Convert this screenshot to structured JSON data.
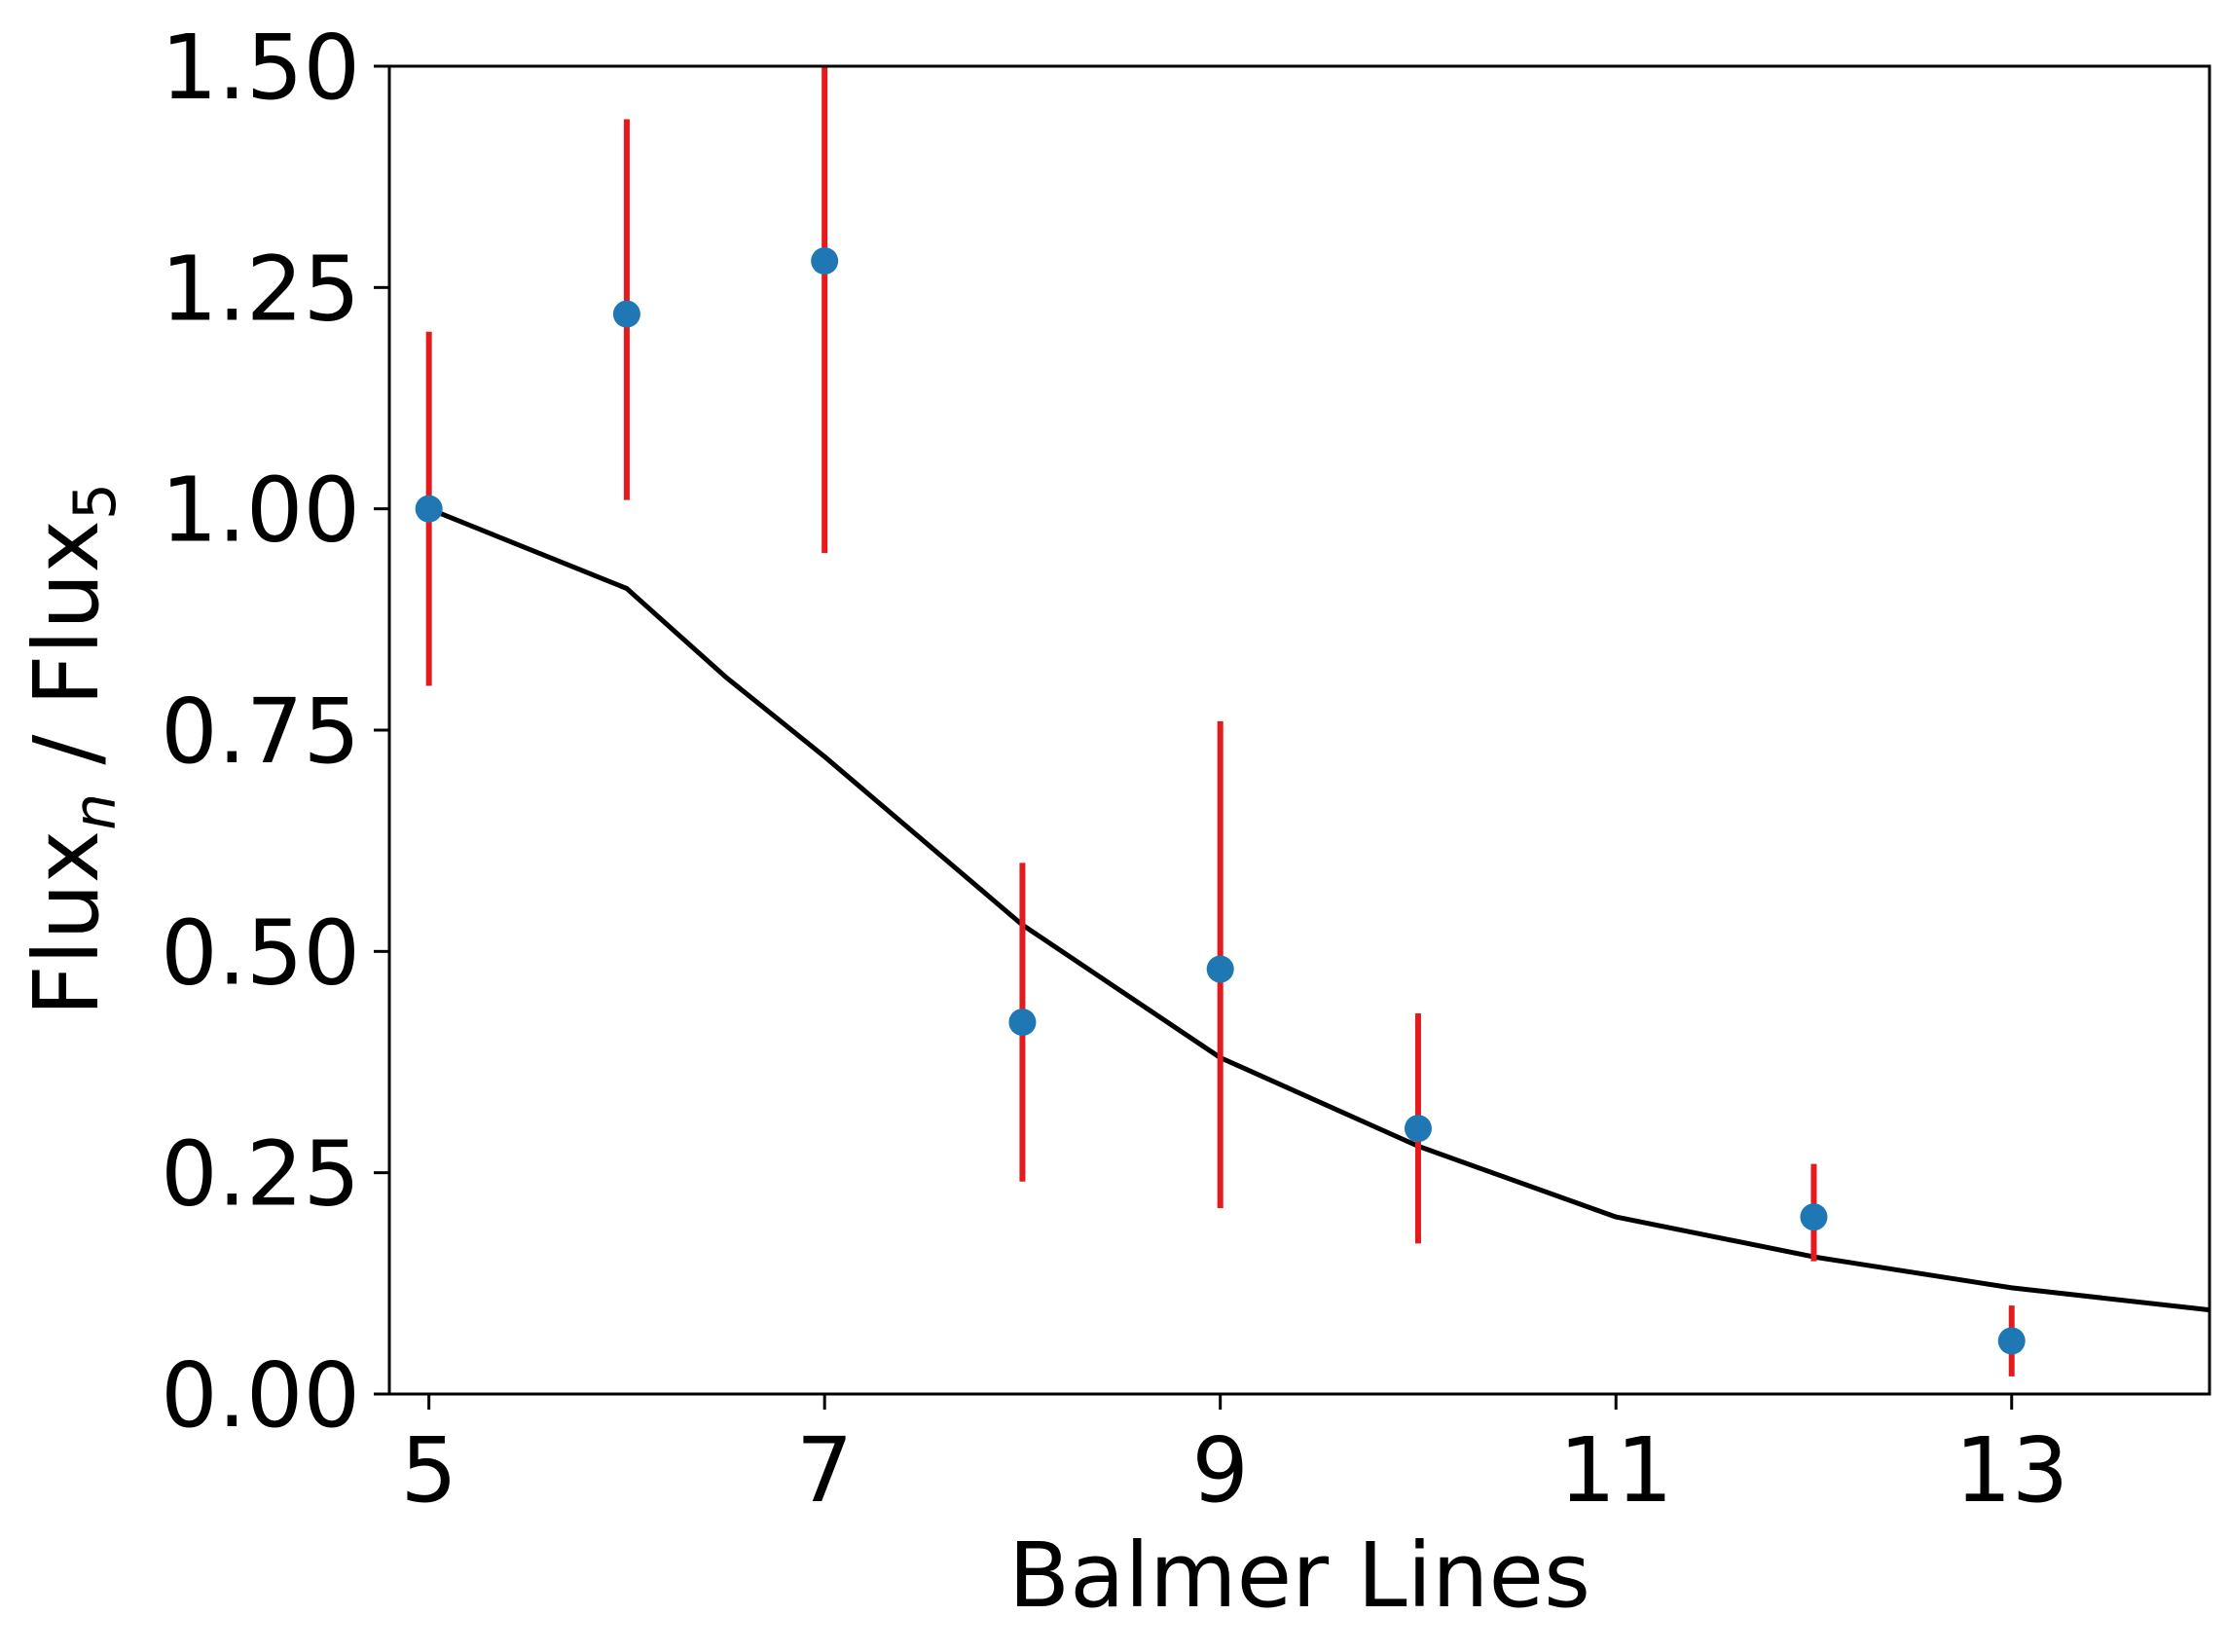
{
  "chart_data": {
    "type": "scatter",
    "xlabel": "Balmer Lines",
    "ylabel": {
      "base": "Flux",
      "sub_n": "n",
      "sep": " / ",
      "base2": "Flux",
      "sub_5": "5"
    },
    "xlim": [
      4.8,
      14
    ],
    "ylim": [
      0,
      1.5
    ],
    "xticks": [
      5,
      7,
      9,
      11,
      13
    ],
    "yticks": [
      0.0,
      0.25,
      0.5,
      0.75,
      1.0,
      1.25,
      1.5
    ],
    "ytick_labels": [
      "0.00",
      "0.25",
      "0.50",
      "0.75",
      "1.00",
      "1.25",
      "1.50"
    ],
    "grid": false,
    "series": [
      {
        "kind": "errorbar",
        "marker_color": "#1f77b4",
        "error_color": "#e41a1c",
        "points": [
          {
            "x": 5,
            "y": 1.0,
            "lo": 0.8,
            "hi": 1.2
          },
          {
            "x": 6,
            "y": 1.22,
            "lo": 1.01,
            "hi": 1.44
          },
          {
            "x": 7,
            "y": 1.28,
            "lo": 0.95,
            "hi": 1.5
          },
          {
            "x": 8,
            "y": 0.42,
            "lo": 0.24,
            "hi": 0.6
          },
          {
            "x": 9,
            "y": 0.48,
            "lo": 0.21,
            "hi": 0.76
          },
          {
            "x": 10,
            "y": 0.3,
            "lo": 0.17,
            "hi": 0.43
          },
          {
            "x": 12,
            "y": 0.2,
            "lo": 0.15,
            "hi": 0.26
          },
          {
            "x": 13,
            "y": 0.06,
            "lo": 0.02,
            "hi": 0.1
          }
        ]
      },
      {
        "kind": "line",
        "color": "#000000",
        "x": [
          5,
          6,
          6.5,
          7,
          8,
          9,
          10,
          11,
          12,
          13,
          14
        ],
        "y": [
          1.0,
          0.91,
          0.81,
          0.72,
          0.53,
          0.38,
          0.28,
          0.2,
          0.155,
          0.12,
          0.095
        ]
      }
    ]
  }
}
